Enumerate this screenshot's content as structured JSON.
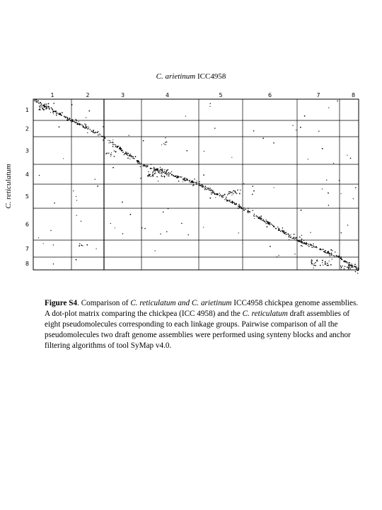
{
  "figure": {
    "title_prefix": "C. arietinum",
    "title_suffix": " ICC4958",
    "ylabel": "C. reticulatum"
  },
  "chart_data": {
    "type": "scatter",
    "title": "C. arietinum ICC4958",
    "xlabel": "C. arietinum ICC4958",
    "ylabel": "C. reticulatum",
    "x_groups": [
      "1",
      "2",
      "3",
      "4",
      "5",
      "6",
      "7",
      "8"
    ],
    "y_groups": [
      "1",
      "2",
      "3",
      "4",
      "5",
      "6",
      "7",
      "8"
    ],
    "grid": true,
    "description_of_pattern": "dot-plot matrix with syntenic anchors along the main diagonal"
  },
  "caption": {
    "label": "Figure S4",
    "p1": ". Comparison of ",
    "i1": "C. reticulatum and C. arietinum",
    "p2": " ICC4958 chickpea genome assemblies. A dot-plot matrix comparing the chickpea (ICC 4958) and the ",
    "i2": "C. reticulatum",
    "p3": " draft assemblies of eight pseudomolecules corresponding to each linkage groups. Pairwise comparison of all the pseudomolecules two draft genome assemblies were performed using synteny blocks and anchor filtering algorithms of tool SyMap v4.0."
  }
}
